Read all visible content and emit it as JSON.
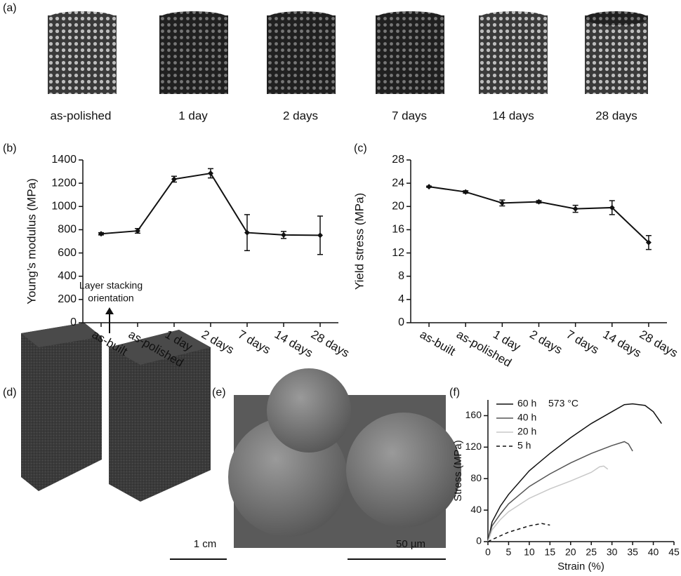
{
  "panel_labels": [
    "(a)",
    "(b)",
    "(c)",
    "(d)",
    "(e)",
    "(f)"
  ],
  "photo_captions": [
    "as-polished",
    "1 day",
    "2 days",
    "7 days",
    "14 days",
    "28 days"
  ],
  "cube_annotation": [
    "Layer stacking",
    "orientation"
  ],
  "scale_bars": [
    "1 cm",
    "50 µm"
  ],
  "chart_data": [
    {
      "type": "line",
      "ylabel": "Young’s modulus (MPa)",
      "categories": [
        "as-built",
        "as-polished",
        "1 day",
        "2 days",
        "7 days",
        "14 days",
        "28 days"
      ],
      "values": [
        765,
        790,
        1235,
        1285,
        775,
        755,
        752
      ],
      "errors": [
        10,
        20,
        25,
        40,
        155,
        30,
        165
      ],
      "color": "#111111",
      "ylim": [
        0,
        1400
      ],
      "yticks": [
        0,
        200,
        400,
        600,
        800,
        1000,
        1200,
        1400
      ]
    },
    {
      "type": "line",
      "ylabel": "Yield stress (MPa)",
      "categories": [
        "as-built",
        "as-polished",
        "1 day",
        "2 days",
        "7 days",
        "14 days",
        "28 days"
      ],
      "values": [
        23.4,
        22.5,
        20.6,
        20.8,
        19.6,
        19.8,
        13.8
      ],
      "errors": [
        0.1,
        0.2,
        0.5,
        0.2,
        0.6,
        1.2,
        1.2
      ],
      "color": "#111111",
      "ylim": [
        0,
        28
      ],
      "yticks": [
        0,
        4,
        8,
        12,
        16,
        20,
        24,
        28
      ]
    },
    {
      "type": "xyline",
      "xlabel": "Strain (%)",
      "ylabel": "Stress (MPa)",
      "annotation": "573 °C",
      "xlim": [
        0,
        45
      ],
      "xticks": [
        0,
        5,
        10,
        15,
        20,
        25,
        30,
        35,
        40,
        45
      ],
      "ylim": [
        0,
        180
      ],
      "yticks": [
        0,
        40,
        80,
        120,
        160
      ],
      "series": [
        {
          "name": "60 h",
          "color": "#111111",
          "linestyle": "solid",
          "x": [
            0,
            1,
            3,
            5,
            10,
            15,
            20,
            25,
            30,
            33,
            35,
            38,
            40,
            42
          ],
          "values": [
            0,
            25,
            45,
            60,
            90,
            112,
            132,
            150,
            165,
            174,
            175,
            173,
            165,
            150
          ]
        },
        {
          "name": "40 h",
          "color": "#555555",
          "linestyle": "solid",
          "x": [
            0,
            1,
            3,
            5,
            10,
            15,
            20,
            25,
            30,
            33,
            34,
            35
          ],
          "values": [
            0,
            20,
            35,
            48,
            70,
            86,
            100,
            112,
            122,
            127,
            124,
            115
          ]
        },
        {
          "name": "20 h",
          "color": "#c8c8c8",
          "linestyle": "solid",
          "x": [
            0,
            1,
            3,
            5,
            10,
            15,
            20,
            25,
            27,
            28,
            29
          ],
          "values": [
            0,
            15,
            28,
            38,
            55,
            67,
            77,
            88,
            95,
            96,
            92
          ]
        },
        {
          "name": "5 h",
          "color": "#111111",
          "linestyle": "dashed",
          "x": [
            0,
            2,
            5,
            10,
            13,
            15
          ],
          "values": [
            0,
            5,
            12,
            20,
            23,
            21
          ]
        }
      ]
    }
  ]
}
